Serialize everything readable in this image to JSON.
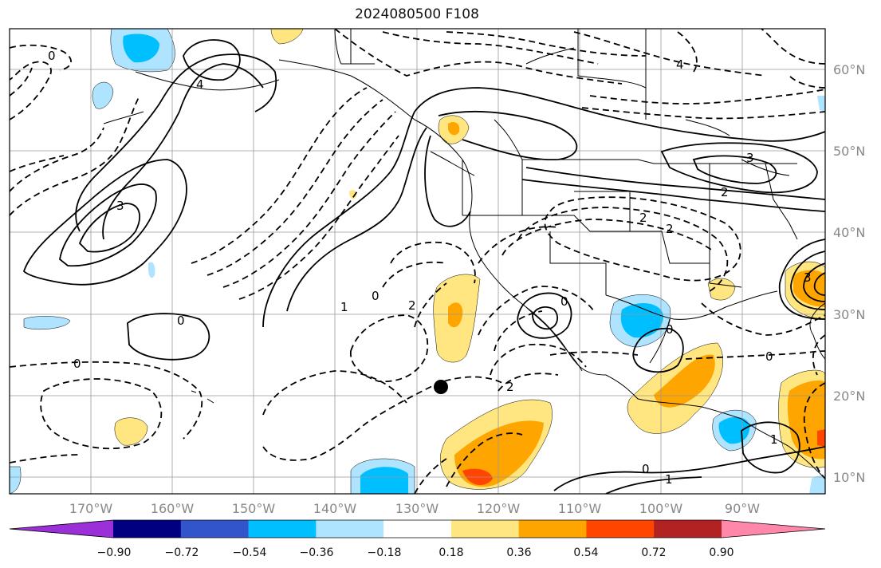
{
  "title": "2024080500 F108",
  "lat_labels": [
    "60°N",
    "50°N",
    "40°N",
    "30°N",
    "20°N",
    "10°N"
  ],
  "lon_labels": [
    "170°W",
    "160°W",
    "150°W",
    "140°W",
    "130°W",
    "120°W",
    "110°W",
    "100°W",
    "90°W"
  ],
  "colorbar": {
    "ticks": [
      "−0.90",
      "−0.72",
      "−0.54",
      "−0.36",
      "−0.18",
      "0.18",
      "0.36",
      "0.54",
      "0.72",
      "0.90"
    ],
    "colors": [
      "#9b30d9",
      "#000080",
      "#3355cc",
      "#00bfff",
      "#aee4ff",
      "#ffffff",
      "#ffe680",
      "#ffa500",
      "#ff4500",
      "#b22222",
      "#ff88aa"
    ]
  },
  "contour_labels": [
    "0",
    "0",
    "0",
    "0",
    "0",
    "0",
    "0",
    "0",
    "1",
    "1",
    "1",
    "2",
    "2",
    "2",
    "2",
    "2",
    "3",
    "3",
    "3",
    "4",
    "4"
  ],
  "marker_icon": "black-dot-icon"
}
